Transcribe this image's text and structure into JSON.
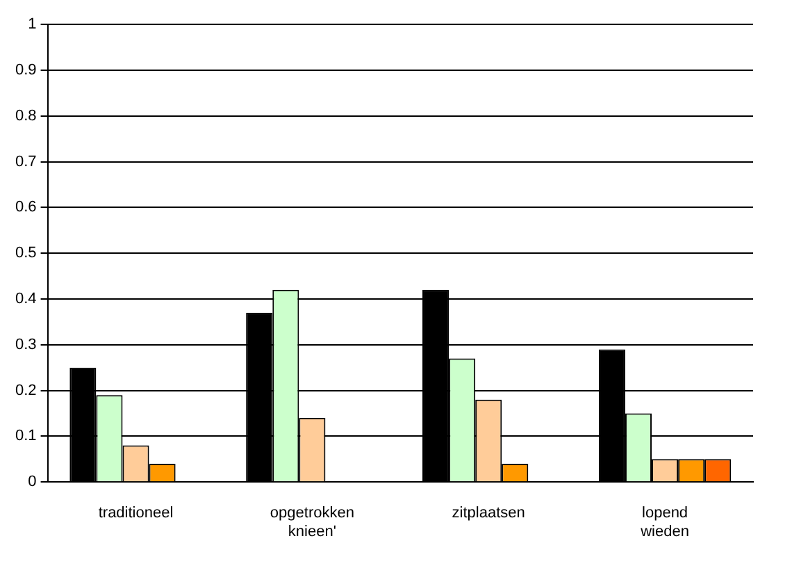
{
  "chart_data": {
    "type": "bar",
    "categories": [
      "traditioneel",
      "opgetrokken knieen'",
      "zitplaatsen",
      "lopend wieden"
    ],
    "series": [
      {
        "color": "#000000",
        "values": [
          0.25,
          0.37,
          0.42,
          0.29
        ]
      },
      {
        "color": "#ccffcc",
        "values": [
          0.19,
          0.42,
          0.27,
          0.15
        ]
      },
      {
        "color": "#ffcc99",
        "values": [
          0.08,
          0.14,
          0.18,
          0.05
        ]
      },
      {
        "color": "#ff9900",
        "values": [
          0.04,
          null,
          0.04,
          0.05
        ]
      },
      {
        "color": "#ff6600",
        "values": [
          null,
          null,
          null,
          0.05
        ]
      }
    ],
    "ylim": [
      0,
      1
    ],
    "yticks": [
      0,
      0.1,
      0.2,
      0.3,
      0.4,
      0.5,
      0.6,
      0.7,
      0.8,
      0.9,
      1
    ],
    "grid": "y",
    "legend": false
  }
}
